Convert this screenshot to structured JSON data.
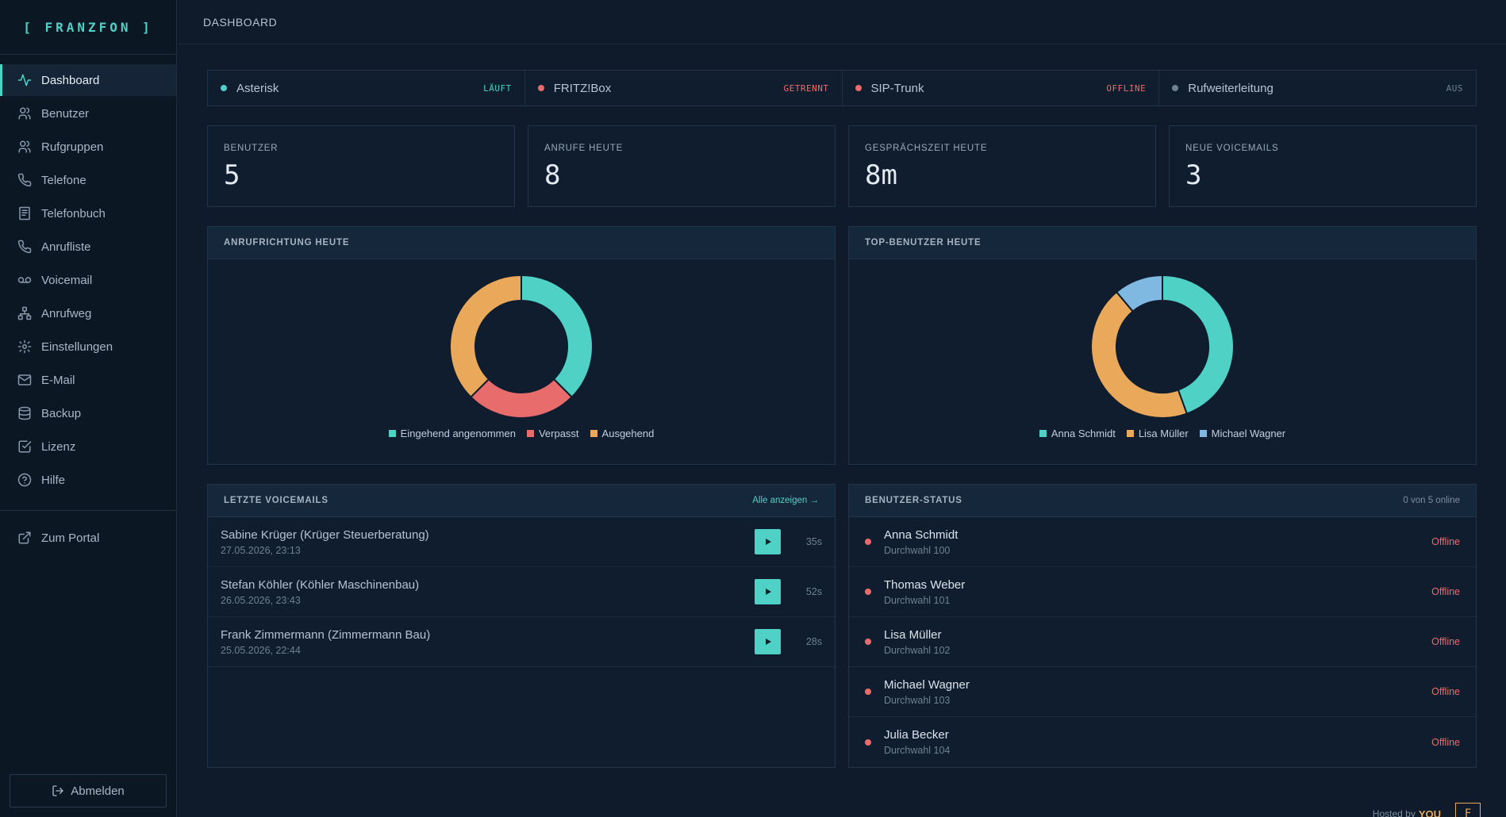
{
  "app": {
    "logo": "[ FRANZFON ]",
    "page_title": "DASHBOARD"
  },
  "sidebar": {
    "items": [
      {
        "label": "Dashboard",
        "icon": "activity-icon",
        "active": true
      },
      {
        "label": "Benutzer",
        "icon": "users-icon"
      },
      {
        "label": "Rufgruppen",
        "icon": "users-icon"
      },
      {
        "label": "Telefone",
        "icon": "phone-icon"
      },
      {
        "label": "Telefonbuch",
        "icon": "book-icon"
      },
      {
        "label": "Anrufliste",
        "icon": "phone-call-icon"
      },
      {
        "label": "Voicemail",
        "icon": "voicemail-icon"
      },
      {
        "label": "Anrufweg",
        "icon": "network-icon"
      },
      {
        "label": "Einstellungen",
        "icon": "gear-icon"
      },
      {
        "label": "E-Mail",
        "icon": "mail-icon"
      },
      {
        "label": "Backup",
        "icon": "database-icon"
      },
      {
        "label": "Lizenz",
        "icon": "check-square-icon"
      },
      {
        "label": "Hilfe",
        "icon": "help-circle-icon"
      }
    ],
    "portal": {
      "label": "Zum Portal",
      "icon": "external-link-icon"
    },
    "logout": {
      "label": "Abmelden",
      "icon": "logout-icon"
    }
  },
  "status": [
    {
      "name": "Asterisk",
      "value": "LÄUFT",
      "color": "#4fd1c5"
    },
    {
      "name": "FRITZ!Box",
      "value": "GETRENNT",
      "color": "#e96c6c"
    },
    {
      "name": "SIP-Trunk",
      "value": "OFFLINE",
      "color": "#e96c6c"
    },
    {
      "name": "Rufweiterleitung",
      "value": "AUS",
      "color": "#6f8094"
    }
  ],
  "stats": [
    {
      "label": "BENUTZER",
      "value": "5"
    },
    {
      "label": "ANRUFE HEUTE",
      "value": "8"
    },
    {
      "label": "GESPRÄCHSZEIT HEUTE",
      "value": "8m"
    },
    {
      "label": "NEUE VOICEMAILS",
      "value": "3"
    }
  ],
  "charts": {
    "direction": {
      "title": "ANRUFRICHTUNG HEUTE"
    },
    "top_users": {
      "title": "TOP-BENUTZER HEUTE"
    }
  },
  "chart_data": [
    {
      "type": "pie",
      "title": "ANRUFRICHTUNG HEUTE",
      "categories": [
        "Eingehend angenommen",
        "Verpasst",
        "Ausgehend"
      ],
      "values": [
        3,
        2,
        3
      ],
      "colors": [
        "#4fd1c5",
        "#e96c6c",
        "#e9a85a"
      ],
      "legend": "bottom"
    },
    {
      "type": "pie",
      "title": "TOP-BENUTZER HEUTE",
      "categories": [
        "Anna Schmidt",
        "Lisa Müller",
        "Michael Wagner"
      ],
      "values": [
        4,
        4,
        1
      ],
      "colors": [
        "#4fd1c5",
        "#e9a85a",
        "#7fb8e0"
      ],
      "legend": "bottom"
    }
  ],
  "voicemails": {
    "title": "LETZTE VOICEMAILS",
    "show_all": "Alle anzeigen →",
    "items": [
      {
        "caller": "Sabine Krüger (Krüger Steuerberatung)",
        "date": "27.05.2026, 23:13",
        "duration": "35s"
      },
      {
        "caller": "Stefan Köhler (Köhler Maschinenbau)",
        "date": "26.05.2026, 23:43",
        "duration": "52s"
      },
      {
        "caller": "Frank Zimmermann (Zimmermann Bau)",
        "date": "25.05.2026, 22:44",
        "duration": "28s"
      }
    ]
  },
  "user_status": {
    "title": "BENUTZER-STATUS",
    "summary": "0 von 5 online",
    "items": [
      {
        "name": "Anna Schmidt",
        "ext": "Durchwahl 100",
        "state": "Offline"
      },
      {
        "name": "Thomas Weber",
        "ext": "Durchwahl 101",
        "state": "Offline"
      },
      {
        "name": "Lisa Müller",
        "ext": "Durchwahl 102",
        "state": "Offline"
      },
      {
        "name": "Michael Wagner",
        "ext": "Durchwahl 103",
        "state": "Offline"
      },
      {
        "name": "Julia Becker",
        "ext": "Durchwahl 104",
        "state": "Offline"
      }
    ]
  },
  "footer": {
    "hosted_by": "Hosted by",
    "brand": "YOU",
    "badge": "F"
  }
}
